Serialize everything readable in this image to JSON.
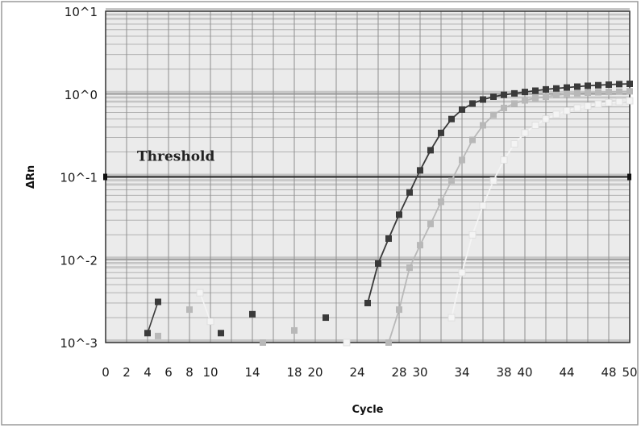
{
  "chart_data": {
    "type": "line",
    "xlabel": "Cycle",
    "ylabel": "ΔRn",
    "xlim": [
      0,
      50
    ],
    "ylim": [
      0.001,
      10
    ],
    "yscale": "log",
    "grid": true,
    "x_tick_labels": [
      "0",
      "2",
      "4",
      "6",
      "8",
      "10",
      "14",
      "18",
      "20",
      "24",
      "28",
      "30",
      "34",
      "38",
      "40",
      "44",
      "48",
      "50"
    ],
    "y_tick_labels": [
      "10^1",
      "10^0",
      "10^-1",
      "10^-2",
      "10^-3"
    ],
    "y_tick_values": [
      10,
      1,
      0.1,
      0.01,
      0.001
    ],
    "threshold": {
      "label": "Threshold",
      "value": 0.1
    },
    "colors": {
      "series1": "#3a3a3a",
      "series2": "#b8b8b8",
      "series3": "#f4f4f4"
    },
    "series": [
      {
        "x": [
          4,
          5,
          11,
          14,
          21,
          25,
          26,
          27,
          28,
          29,
          30,
          31,
          32,
          33,
          34,
          35,
          36,
          37,
          38,
          39,
          40,
          41,
          42,
          43,
          44,
          45,
          46,
          47,
          48,
          49,
          50
        ],
        "y": [
          0.0013,
          0.0031,
          0.0013,
          0.0022,
          0.002,
          0.003,
          0.009,
          0.018,
          0.035,
          0.065,
          0.12,
          0.21,
          0.34,
          0.5,
          0.65,
          0.77,
          0.86,
          0.93,
          0.98,
          1.02,
          1.06,
          1.1,
          1.14,
          1.17,
          1.2,
          1.23,
          1.26,
          1.28,
          1.3,
          1.32,
          1.33
        ]
      },
      {
        "x": [
          5,
          8,
          15,
          18,
          27,
          28,
          29,
          30,
          31,
          32,
          33,
          34,
          35,
          36,
          37,
          38,
          39,
          40,
          41,
          42,
          43,
          44,
          45,
          46,
          47,
          48,
          49,
          50
        ],
        "y": [
          0.0012,
          0.0025,
          0.001,
          0.0014,
          0.001,
          0.0025,
          0.008,
          0.015,
          0.027,
          0.05,
          0.09,
          0.16,
          0.28,
          0.42,
          0.56,
          0.68,
          0.77,
          0.84,
          0.89,
          0.93,
          0.97,
          1.0,
          1.02,
          1.04,
          1.05,
          1.06,
          1.07,
          1.08
        ]
      },
      {
        "x": [
          9,
          10,
          23,
          33,
          34,
          35,
          36,
          37,
          38,
          39,
          40,
          41,
          42,
          43,
          44,
          45,
          46,
          47,
          48,
          49,
          50
        ],
        "y": [
          0.004,
          0.0018,
          0.001,
          0.002,
          0.007,
          0.02,
          0.045,
          0.09,
          0.16,
          0.25,
          0.34,
          0.42,
          0.5,
          0.57,
          0.63,
          0.68,
          0.72,
          0.76,
          0.79,
          0.81,
          0.83
        ]
      }
    ]
  }
}
